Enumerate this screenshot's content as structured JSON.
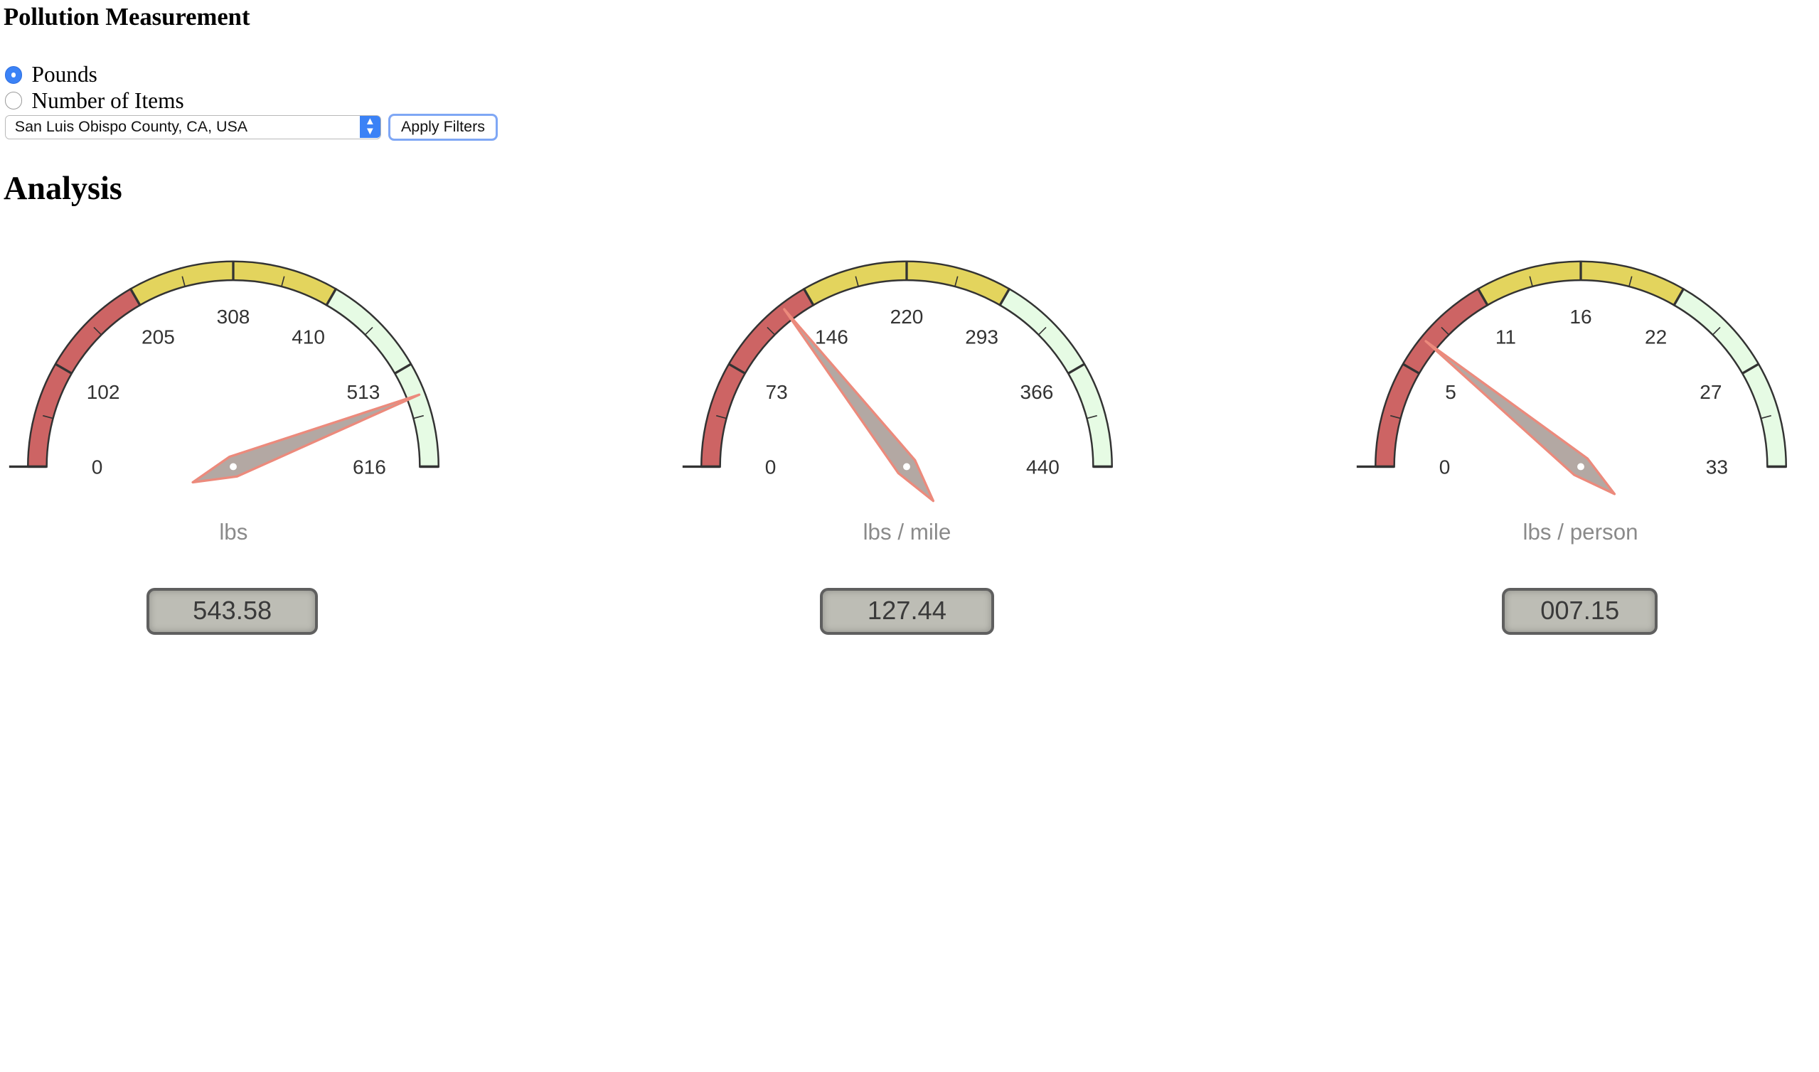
{
  "filters": {
    "title": "Pollution Measurement",
    "measurement_options": [
      {
        "label": "Pounds",
        "selected": true
      },
      {
        "label": "Number of Items",
        "selected": false
      }
    ],
    "location_select": {
      "value": "San Luis Obispo County, CA, USA"
    },
    "apply_label": "Apply Filters"
  },
  "analysis": {
    "title": "Analysis",
    "gauges": [
      {
        "unit": "lbs",
        "min": 0,
        "max": 616,
        "ticks": [
          "0",
          "102",
          "205",
          "308",
          "410",
          "513",
          "616"
        ],
        "value": 543.58,
        "display": "543.58"
      },
      {
        "unit": "lbs / mile",
        "min": 0,
        "max": 440,
        "ticks": [
          "0",
          "73",
          "146",
          "220",
          "293",
          "366",
          "440"
        ],
        "value": 127.44,
        "display": "127.44"
      },
      {
        "unit": "lbs / person",
        "min": 0,
        "max": 33,
        "ticks": [
          "0",
          "5",
          "11",
          "16",
          "22",
          "27",
          "33"
        ],
        "value": 7.15,
        "display": "007.15"
      }
    ]
  },
  "colors": {
    "band_low": "#cd6464",
    "band_mid": "#e3d45d",
    "band_high": "#e6fbe4",
    "needle_edge": "#ec8a7c",
    "needle_fill": "#b3a8a3"
  }
}
